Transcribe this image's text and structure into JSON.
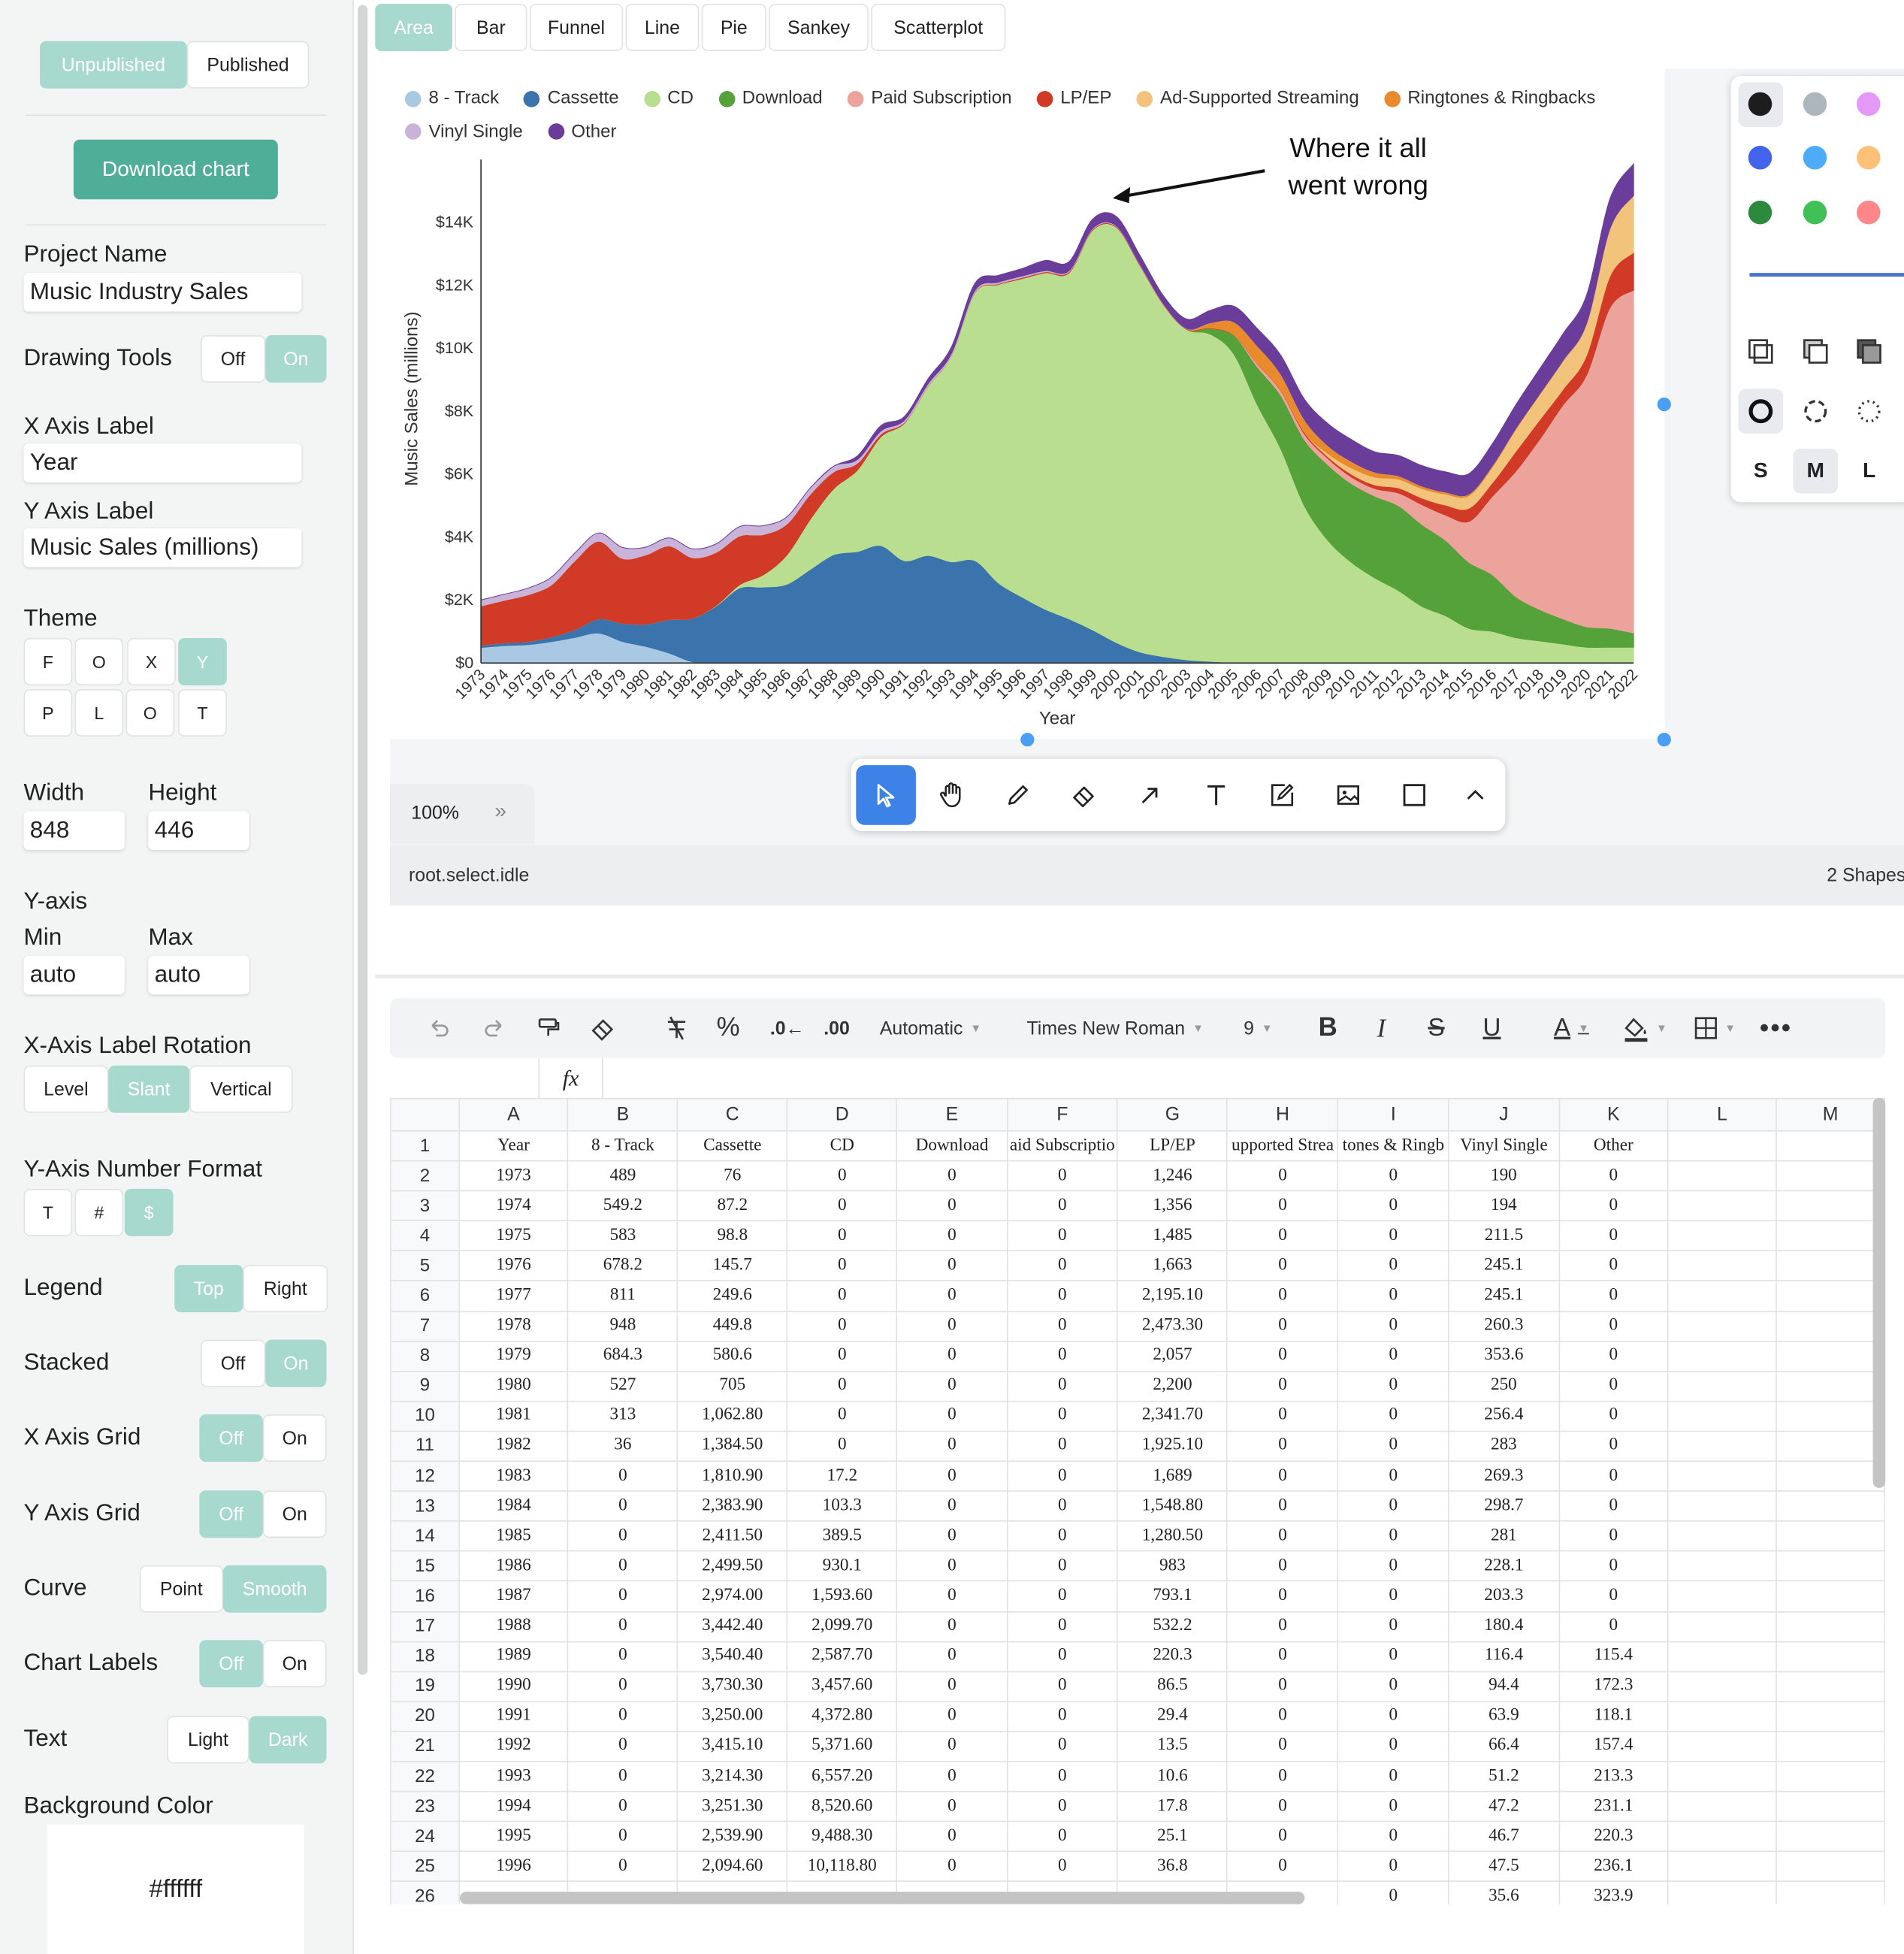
{
  "publish": {
    "unpublished": "Unpublished",
    "published": "Published"
  },
  "download_label": "Download chart",
  "fields": {
    "project_name_label": "Project Name",
    "project_name": "Music Industry Sales",
    "drawing_tools_label": "Drawing Tools",
    "off": "Off",
    "on": "On",
    "x_axis_label_label": "X Axis Label",
    "x_axis_label": "Year",
    "y_axis_label_label": "Y Axis Label",
    "y_axis_label": "Music Sales (millions)",
    "theme_label": "Theme",
    "theme_buttons": [
      "F",
      "O",
      "X",
      "Y",
      "P",
      "L",
      "O",
      "T"
    ],
    "width_label": "Width",
    "width": "848",
    "height_label": "Height",
    "height": "446",
    "yaxis_label": "Y-axis",
    "min_label": "Min",
    "min": "auto",
    "max_label": "Max",
    "max": "auto",
    "rotation_label": "X-Axis Label Rotation",
    "level": "Level",
    "slant": "Slant",
    "vertical": "Vertical",
    "number_format_label": "Y-Axis Number Format",
    "nf_t": "T",
    "nf_hash": "#",
    "nf_dollar": "$",
    "legend_label": "Legend",
    "legend_top": "Top",
    "legend_right": "Right",
    "stacked_label": "Stacked",
    "x_grid_label": "X Axis Grid",
    "y_grid_label": "Y Axis Grid",
    "curve_label": "Curve",
    "curve_point": "Point",
    "curve_smooth": "Smooth",
    "chart_labels_label": "Chart Labels",
    "text_label": "Text",
    "text_light": "Light",
    "text_dark": "Dark",
    "bg_label": "Background Color",
    "bg_value": "#ffffff"
  },
  "chart_tabs": [
    "Area",
    "Bar",
    "Funnel",
    "Line",
    "Pie",
    "Sankey",
    "Scatterplot"
  ],
  "annotation": [
    "Where it all",
    "went wrong"
  ],
  "style_panel": {
    "sizes": [
      "S",
      "M",
      "L"
    ],
    "colors": [
      "#1d1d1d",
      "#adb5bd",
      "#e599f7",
      "#4263eb",
      "#4dabf7",
      "#ffc078",
      "#2b8a3e",
      "#40c057",
      "#ff8787"
    ]
  },
  "zoom": "100%",
  "status_left": "root.select.idle",
  "status_right": "2 Shapes",
  "sheet_toolbar": {
    "format": "Automatic",
    "font": "Times New Roman",
    "size": "9",
    "fx": "fx"
  },
  "chart_data": {
    "type": "area",
    "stacked": true,
    "curve": "smooth",
    "xlabel": "Year",
    "ylabel": "Music Sales (millions)",
    "ylim": [
      0,
      16000
    ],
    "yticks": [
      "$0",
      "$2K",
      "$4K",
      "$6K",
      "$8K",
      "$10K",
      "$12K",
      "$14K"
    ],
    "legend_position": "top",
    "grid": {
      "x": false,
      "y": false
    },
    "x": [
      1973,
      1974,
      1975,
      1976,
      1977,
      1978,
      1979,
      1980,
      1981,
      1982,
      1983,
      1984,
      1985,
      1986,
      1987,
      1988,
      1989,
      1990,
      1991,
      1992,
      1993,
      1994,
      1995,
      1996,
      1997,
      1998,
      1999,
      2000,
      2001,
      2002,
      2003,
      2004,
      2005,
      2006,
      2007,
      2008,
      2009,
      2010,
      2011,
      2012,
      2013,
      2014,
      2015,
      2016,
      2017,
      2018,
      2019,
      2020,
      2021,
      2022
    ],
    "series": [
      {
        "name": "8 - Track",
        "color": "#a9c8e3",
        "values": [
          489,
          549.2,
          583,
          678.2,
          811,
          948,
          684.3,
          527,
          313,
          36,
          0,
          0,
          0,
          0,
          0,
          0,
          0,
          0,
          0,
          0,
          0,
          0,
          0,
          0,
          0,
          0,
          0,
          0,
          0,
          0,
          0,
          0,
          0,
          0,
          0,
          0,
          0,
          0,
          0,
          0,
          0,
          0,
          0,
          0,
          0,
          0,
          0,
          0,
          0,
          0
        ]
      },
      {
        "name": "Cassette",
        "color": "#3b74ad",
        "values": [
          76,
          87.2,
          98.8,
          145.7,
          249.6,
          449.8,
          580.6,
          705,
          1062.8,
          1384.5,
          1810.9,
          2383.9,
          2411.5,
          2499.5,
          2974,
          3442.4,
          3540.4,
          3730.3,
          3250,
          3415.1,
          3214.3,
          3251.3,
          2539.9,
          2094.6,
          1700,
          1400,
          1050,
          650,
          350,
          200,
          100,
          50,
          20,
          10,
          5,
          0,
          0,
          0,
          0,
          0,
          0,
          0,
          0,
          0,
          0,
          0,
          0,
          0,
          0,
          0
        ]
      },
      {
        "name": "CD",
        "color": "#bade8f",
        "values": [
          0,
          0,
          0,
          0,
          0,
          0,
          0,
          0,
          0,
          0,
          17.2,
          103.3,
          389.5,
          930.1,
          1593.6,
          2099.7,
          2587.7,
          3457.6,
          4372.8,
          5371.6,
          6557.2,
          8520.6,
          9488.3,
          10118.8,
          10700,
          11000,
          12700,
          13200,
          12300,
          11200,
          10500,
          10400,
          9800,
          8200,
          6800,
          5000,
          3900,
          3200,
          2700,
          2300,
          1800,
          1500,
          1100,
          1000,
          800,
          700,
          600,
          500,
          500,
          500
        ]
      },
      {
        "name": "Download",
        "color": "#56a23a",
        "values": [
          0,
          0,
          0,
          0,
          0,
          0,
          0,
          0,
          0,
          0,
          0,
          0,
          0,
          0,
          0,
          0,
          0,
          0,
          0,
          0,
          0,
          0,
          0,
          0,
          0,
          0,
          0,
          0,
          0,
          0,
          0,
          180,
          600,
          1200,
          1700,
          2100,
          2400,
          2500,
          2600,
          2700,
          2600,
          2400,
          2100,
          1800,
          1300,
          1000,
          800,
          650,
          600,
          450
        ]
      },
      {
        "name": "Paid Subscription",
        "color": "#eca39c",
        "values": [
          0,
          0,
          0,
          0,
          0,
          0,
          0,
          0,
          0,
          0,
          0,
          0,
          0,
          0,
          0,
          0,
          0,
          0,
          0,
          0,
          0,
          0,
          0,
          0,
          0,
          0,
          0,
          0,
          0,
          0,
          0,
          0,
          0,
          100,
          150,
          180,
          200,
          210,
          240,
          400,
          630,
          800,
          1300,
          2500,
          4000,
          5400,
          6800,
          8000,
          10200,
          10900
        ]
      },
      {
        "name": "LP/EP",
        "color": "#d03a27",
        "values": [
          1246,
          1356,
          1485,
          1663,
          2195.1,
          2473.3,
          2057,
          2200,
          2341.7,
          1925.1,
          1689,
          1548.8,
          1280.5,
          983,
          793.1,
          532.2,
          220.3,
          86.5,
          29.4,
          13.5,
          10.6,
          17.8,
          25.1,
          36.8,
          33,
          34,
          31,
          27,
          25,
          23,
          22,
          21,
          15,
          16,
          22,
          56,
          57,
          89,
          117,
          163,
          211,
          315,
          417,
          431,
          631,
          619,
          497,
          628,
          1000,
          1200
        ]
      },
      {
        "name": "Ad-Supported Streaming",
        "color": "#f2c37b",
        "values": [
          0,
          0,
          0,
          0,
          0,
          0,
          0,
          0,
          0,
          0,
          0,
          0,
          0,
          0,
          0,
          0,
          0,
          0,
          0,
          0,
          0,
          0,
          0,
          0,
          0,
          0,
          0,
          0,
          0,
          0,
          0,
          0,
          0,
          0,
          0,
          0,
          100,
          200,
          250,
          280,
          300,
          350,
          400,
          500,
          700,
          800,
          900,
          1000,
          1500,
          1800
        ]
      },
      {
        "name": "Ringtones & Ringbacks",
        "color": "#e98a2c",
        "values": [
          0,
          0,
          0,
          0,
          0,
          0,
          0,
          0,
          0,
          0,
          0,
          0,
          0,
          0,
          0,
          0,
          0,
          0,
          0,
          0,
          0,
          0,
          0,
          0,
          0,
          0,
          0,
          0,
          0,
          0,
          0,
          150,
          400,
          550,
          500,
          400,
          250,
          200,
          150,
          100,
          80,
          60,
          50,
          40,
          30,
          20,
          15,
          12,
          10,
          10
        ]
      },
      {
        "name": "Vinyl Single",
        "color": "#c9b3d8",
        "values": [
          190,
          194,
          211.5,
          245.1,
          245.1,
          260.3,
          353.6,
          250,
          256.4,
          283,
          269.3,
          298.7,
          281,
          228.1,
          203.3,
          180.4,
          116.4,
          94.4,
          63.9,
          66.4,
          51.2,
          47.2,
          46.7,
          47.5,
          35.6,
          30,
          25,
          20,
          15,
          10,
          8,
          6,
          5,
          4,
          4,
          3,
          3,
          3,
          3,
          3,
          2,
          2,
          2,
          2,
          2,
          2,
          2,
          2,
          2,
          2
        ]
      },
      {
        "name": "Other",
        "color": "#6a3d9a",
        "values": [
          0,
          0,
          0,
          0,
          0,
          0,
          0,
          0,
          0,
          0,
          0,
          0,
          0,
          0,
          0,
          0,
          115.4,
          172.3,
          118.1,
          157.4,
          213.3,
          231.1,
          220.3,
          236.1,
          323.9,
          290,
          300,
          300,
          280,
          250,
          300,
          400,
          500,
          550,
          600,
          650,
          700,
          700,
          650,
          650,
          650,
          650,
          650,
          700,
          750,
          800,
          850,
          900,
          950,
          1000
        ]
      }
    ]
  },
  "sheet": {
    "col_letters": [
      "",
      "A",
      "B",
      "C",
      "D",
      "E",
      "F",
      "G",
      "H",
      "I",
      "J",
      "K",
      "L",
      "M"
    ],
    "header": [
      "Year",
      "8 - Track",
      "Cassette",
      "CD",
      "Download",
      "aid Subscriptio",
      "LP/EP",
      "upported Strea",
      "tones & Ringb",
      "Vinyl Single",
      "Other",
      "",
      ""
    ],
    "rows": [
      [
        "1973",
        "489",
        "76",
        "0",
        "0",
        "0",
        "1,246",
        "0",
        "0",
        "190",
        "0",
        "",
        ""
      ],
      [
        "1974",
        "549.2",
        "87.2",
        "0",
        "0",
        "0",
        "1,356",
        "0",
        "0",
        "194",
        "0",
        "",
        ""
      ],
      [
        "1975",
        "583",
        "98.8",
        "0",
        "0",
        "0",
        "1,485",
        "0",
        "0",
        "211.5",
        "0",
        "",
        ""
      ],
      [
        "1976",
        "678.2",
        "145.7",
        "0",
        "0",
        "0",
        "1,663",
        "0",
        "0",
        "245.1",
        "0",
        "",
        ""
      ],
      [
        "1977",
        "811",
        "249.6",
        "0",
        "0",
        "0",
        "2,195.10",
        "0",
        "0",
        "245.1",
        "0",
        "",
        ""
      ],
      [
        "1978",
        "948",
        "449.8",
        "0",
        "0",
        "0",
        "2,473.30",
        "0",
        "0",
        "260.3",
        "0",
        "",
        ""
      ],
      [
        "1979",
        "684.3",
        "580.6",
        "0",
        "0",
        "0",
        "2,057",
        "0",
        "0",
        "353.6",
        "0",
        "",
        ""
      ],
      [
        "1980",
        "527",
        "705",
        "0",
        "0",
        "0",
        "2,200",
        "0",
        "0",
        "250",
        "0",
        "",
        ""
      ],
      [
        "1981",
        "313",
        "1,062.80",
        "0",
        "0",
        "0",
        "2,341.70",
        "0",
        "0",
        "256.4",
        "0",
        "",
        ""
      ],
      [
        "1982",
        "36",
        "1,384.50",
        "0",
        "0",
        "0",
        "1,925.10",
        "0",
        "0",
        "283",
        "0",
        "",
        ""
      ],
      [
        "1983",
        "0",
        "1,810.90",
        "17.2",
        "0",
        "0",
        "1,689",
        "0",
        "0",
        "269.3",
        "0",
        "",
        ""
      ],
      [
        "1984",
        "0",
        "2,383.90",
        "103.3",
        "0",
        "0",
        "1,548.80",
        "0",
        "0",
        "298.7",
        "0",
        "",
        ""
      ],
      [
        "1985",
        "0",
        "2,411.50",
        "389.5",
        "0",
        "0",
        "1,280.50",
        "0",
        "0",
        "281",
        "0",
        "",
        ""
      ],
      [
        "1986",
        "0",
        "2,499.50",
        "930.1",
        "0",
        "0",
        "983",
        "0",
        "0",
        "228.1",
        "0",
        "",
        ""
      ],
      [
        "1987",
        "0",
        "2,974.00",
        "1,593.60",
        "0",
        "0",
        "793.1",
        "0",
        "0",
        "203.3",
        "0",
        "",
        ""
      ],
      [
        "1988",
        "0",
        "3,442.40",
        "2,099.70",
        "0",
        "0",
        "532.2",
        "0",
        "0",
        "180.4",
        "0",
        "",
        ""
      ],
      [
        "1989",
        "0",
        "3,540.40",
        "2,587.70",
        "0",
        "0",
        "220.3",
        "0",
        "0",
        "116.4",
        "115.4",
        "",
        ""
      ],
      [
        "1990",
        "0",
        "3,730.30",
        "3,457.60",
        "0",
        "0",
        "86.5",
        "0",
        "0",
        "94.4",
        "172.3",
        "",
        ""
      ],
      [
        "1991",
        "0",
        "3,250.00",
        "4,372.80",
        "0",
        "0",
        "29.4",
        "0",
        "0",
        "63.9",
        "118.1",
        "",
        ""
      ],
      [
        "1992",
        "0",
        "3,415.10",
        "5,371.60",
        "0",
        "0",
        "13.5",
        "0",
        "0",
        "66.4",
        "157.4",
        "",
        ""
      ],
      [
        "1993",
        "0",
        "3,214.30",
        "6,557.20",
        "0",
        "0",
        "10.6",
        "0",
        "0",
        "51.2",
        "213.3",
        "",
        ""
      ],
      [
        "1994",
        "0",
        "3,251.30",
        "8,520.60",
        "0",
        "0",
        "17.8",
        "0",
        "0",
        "47.2",
        "231.1",
        "",
        ""
      ],
      [
        "1995",
        "0",
        "2,539.90",
        "9,488.30",
        "0",
        "0",
        "25.1",
        "0",
        "0",
        "46.7",
        "220.3",
        "",
        ""
      ],
      [
        "1996",
        "0",
        "2,094.60",
        "10,118.80",
        "0",
        "0",
        "36.8",
        "0",
        "0",
        "47.5",
        "236.1",
        "",
        ""
      ],
      [
        "",
        "",
        "",
        "",
        "",
        "",
        "",
        "",
        "0",
        "35.6",
        "323.9",
        "",
        ""
      ]
    ]
  }
}
